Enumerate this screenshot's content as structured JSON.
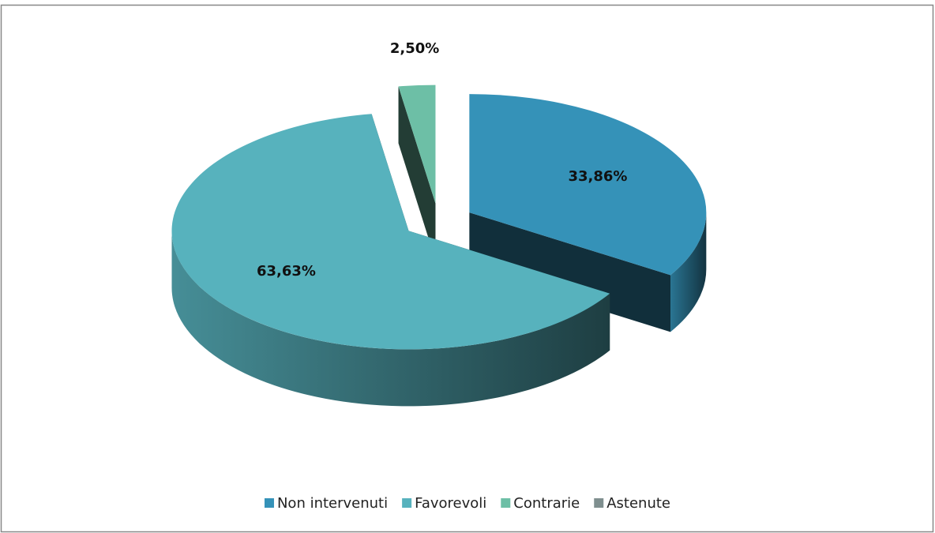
{
  "chart_data": {
    "type": "pie3d",
    "categories": [
      "Non intervenuti",
      "Favorevoli",
      "Contrarie",
      "Astenute"
    ],
    "values": [
      33.86,
      63.63,
      2.5,
      0
    ],
    "value_labels": [
      "33,86%",
      "63,63%",
      "2,50%",
      null
    ],
    "colors": [
      "#3592b8",
      "#57b2bd",
      "#6dbfa6",
      "#7f8f8f"
    ],
    "legend": "bottom"
  }
}
